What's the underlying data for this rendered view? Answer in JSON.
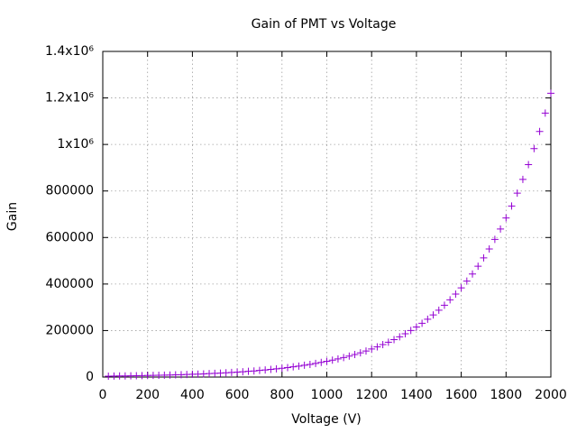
{
  "chart_data": {
    "type": "scatter",
    "title": "Gain of PMT vs Voltage",
    "x_label": "Voltage (V)",
    "y_label": "Gain",
    "xlim": [
      0,
      2000
    ],
    "xticks": [
      0,
      200,
      400,
      600,
      800,
      1000,
      1200,
      1400,
      1600,
      1800,
      2000
    ],
    "ylim": [
      0,
      1400000
    ],
    "yticks": [
      0,
      200000,
      400000,
      600000,
      800000,
      {
        "value": 1000000,
        "label": "1x10⁶"
      },
      {
        "value": 1200000,
        "label": "1.2x10⁶"
      },
      {
        "value": 1400000,
        "label": "1.4x10⁶"
      }
    ],
    "grid": true,
    "series": [
      {
        "color": "#9400d3",
        "x": [
          25,
          50,
          75,
          100,
          125,
          150,
          175,
          200,
          225,
          250,
          275,
          300,
          325,
          350,
          375,
          400,
          425,
          450,
          475,
          500,
          525,
          550,
          575,
          600,
          625,
          650,
          675,
          700,
          725,
          750,
          775,
          800,
          825,
          850,
          875,
          900,
          925,
          950,
          975,
          1000,
          1025,
          1050,
          1075,
          1100,
          1125,
          1150,
          1175,
          1200,
          1225,
          1250,
          1275,
          1300,
          1325,
          1350,
          1375,
          1400,
          1425,
          1450,
          1475,
          1500,
          1525,
          1550,
          1575,
          1600,
          1625,
          1650,
          1675,
          1700,
          1725,
          1750,
          1775,
          1800,
          1825,
          1850,
          1875,
          1900,
          1925,
          1950,
          1975,
          2000
        ],
        "values": [
          4000,
          4300,
          4700,
          5000,
          5400,
          5800,
          6200,
          6700,
          7200,
          7700,
          8300,
          8900,
          9600,
          10300,
          11100,
          11900,
          12800,
          13800,
          14800,
          15900,
          17100,
          18400,
          19800,
          21300,
          22900,
          24600,
          26400,
          28400,
          30500,
          32800,
          35300,
          37900,
          40800,
          43900,
          47100,
          50700,
          54500,
          58600,
          62900,
          67700,
          72700,
          78200,
          84000,
          90300,
          97100,
          104400,
          112200,
          120600,
          129700,
          139400,
          149900,
          161100,
          173200,
          186200,
          200100,
          215100,
          231200,
          248600,
          267200,
          287300,
          308800,
          332000,
          356900,
          383600,
          412400,
          443300,
          476600,
          512300,
          550700,
          592000,
          636400,
          684100,
          735400,
          790500,
          849800,
          913500,
          982000,
          1055700,
          1134900,
          1220000
        ]
      }
    ]
  }
}
